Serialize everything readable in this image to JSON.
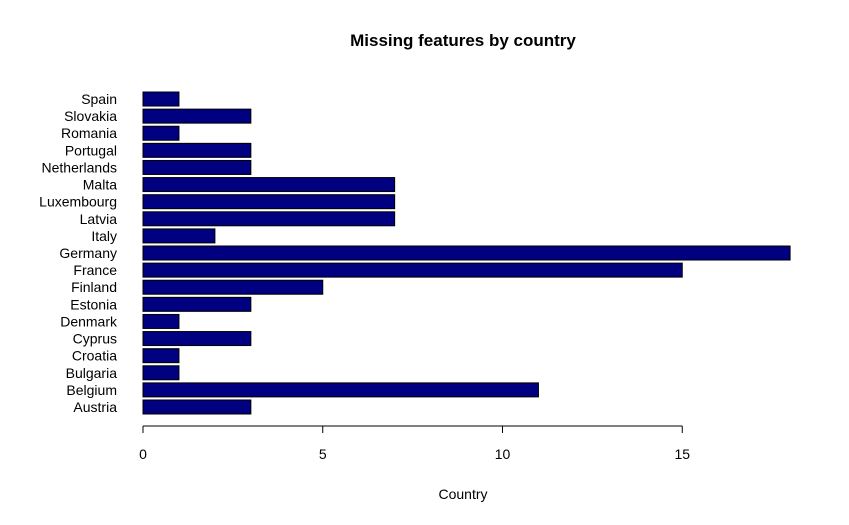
{
  "chart_data": {
    "type": "bar",
    "orientation": "horizontal",
    "title": "Missing features by country",
    "xlabel": "Country",
    "ylabel": "",
    "categories": [
      "Austria",
      "Belgium",
      "Bulgaria",
      "Croatia",
      "Cyprus",
      "Denmark",
      "Estonia",
      "Finland",
      "France",
      "Germany",
      "Italy",
      "Latvia",
      "Luxembourg",
      "Malta",
      "Netherlands",
      "Portugal",
      "Romania",
      "Slovakia",
      "Spain"
    ],
    "values": [
      3,
      11,
      1,
      1,
      3,
      1,
      3,
      5,
      15,
      18,
      2,
      7,
      7,
      7,
      3,
      3,
      1,
      3,
      1
    ],
    "xlim": [
      0,
      18
    ],
    "xticks": [
      0,
      5,
      10,
      15
    ],
    "grid": false,
    "colors": {
      "bar_fill": "#000080",
      "bar_stroke": "#000000"
    }
  }
}
